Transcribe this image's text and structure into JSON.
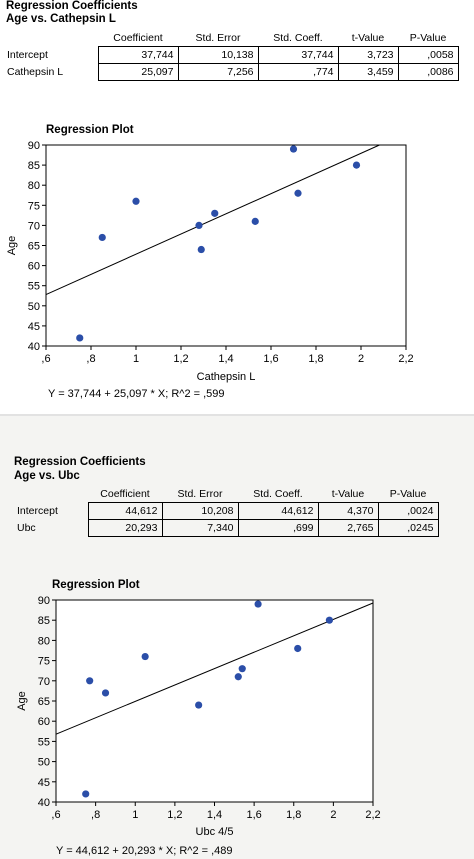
{
  "columns": [
    "Coefficient",
    "Std. Error",
    "Std. Coeff.",
    "t-Value",
    "P-Value"
  ],
  "panels": [
    {
      "title": "Regression Coefficients",
      "subtitle": "Age vs. Cathepsin L",
      "rows": [
        {
          "label": "Intercept",
          "values": [
            "37,744",
            "10,138",
            "37,744",
            "3,723",
            ",0058"
          ]
        },
        {
          "label": "Cathepsin L",
          "values": [
            "25,097",
            "7,256",
            ",774",
            "3,459",
            ",0086"
          ]
        }
      ],
      "plot_title": "Regression Plot",
      "equation": "Y = 37,744 + 25,097 * X; R^2 = ,599"
    },
    {
      "title": "Regression Coefficients",
      "subtitle": "Age vs. Ubc",
      "rows": [
        {
          "label": "Intercept",
          "values": [
            "44,612",
            "10,208",
            "44,612",
            "4,370",
            ",0024"
          ]
        },
        {
          "label": "Ubc",
          "values": [
            "20,293",
            "7,340",
            ",699",
            "2,765",
            ",0245"
          ]
        }
      ],
      "plot_title": "Regression Plot",
      "equation": "Y = 44,612 + 20,293 * X; R^2 = ,489"
    }
  ],
  "colors": {
    "point": "#2b4ea8",
    "line": "#000000"
  },
  "chart_data": [
    {
      "type": "scatter",
      "title": "Regression Plot",
      "xlabel": "Cathepsin L",
      "ylabel": "Age",
      "xlim": [
        0.6,
        2.2
      ],
      "ylim": [
        40,
        90
      ],
      "xticks": [
        0.6,
        0.8,
        1.0,
        1.2,
        1.4,
        1.6,
        1.8,
        2.0,
        2.2
      ],
      "xtick_labels": [
        ",6",
        ",8",
        "1",
        "1,2",
        "1,4",
        "1,6",
        "1,8",
        "2",
        "2,2"
      ],
      "yticks": [
        40,
        45,
        50,
        55,
        60,
        65,
        70,
        75,
        80,
        85,
        90
      ],
      "points": [
        {
          "x": 0.75,
          "y": 42
        },
        {
          "x": 0.85,
          "y": 67
        },
        {
          "x": 1.0,
          "y": 76
        },
        {
          "x": 1.28,
          "y": 70
        },
        {
          "x": 1.29,
          "y": 64
        },
        {
          "x": 1.35,
          "y": 73
        },
        {
          "x": 1.53,
          "y": 71
        },
        {
          "x": 1.7,
          "y": 89
        },
        {
          "x": 1.72,
          "y": 78
        },
        {
          "x": 1.98,
          "y": 85
        }
      ],
      "regression": {
        "intercept": 37.744,
        "slope": 25.097
      },
      "grid": false
    },
    {
      "type": "scatter",
      "title": "Regression Plot",
      "xlabel": "Ubc 4/5",
      "ylabel": "Age",
      "xlim": [
        0.6,
        2.2
      ],
      "ylim": [
        40,
        90
      ],
      "xticks": [
        0.6,
        0.8,
        1.0,
        1.2,
        1.4,
        1.6,
        1.8,
        2.0,
        2.2
      ],
      "xtick_labels": [
        ",6",
        ",8",
        "1",
        "1,2",
        "1,4",
        "1,6",
        "1,8",
        "2",
        "2,2"
      ],
      "yticks": [
        40,
        45,
        50,
        55,
        60,
        65,
        70,
        75,
        80,
        85,
        90
      ],
      "points": [
        {
          "x": 0.75,
          "y": 42
        },
        {
          "x": 0.77,
          "y": 70
        },
        {
          "x": 0.85,
          "y": 67
        },
        {
          "x": 1.05,
          "y": 76
        },
        {
          "x": 1.32,
          "y": 64
        },
        {
          "x": 1.52,
          "y": 71
        },
        {
          "x": 1.54,
          "y": 73
        },
        {
          "x": 1.62,
          "y": 89
        },
        {
          "x": 1.82,
          "y": 78
        },
        {
          "x": 1.98,
          "y": 85
        }
      ],
      "regression": {
        "intercept": 44.612,
        "slope": 20.293
      },
      "grid": false
    }
  ]
}
